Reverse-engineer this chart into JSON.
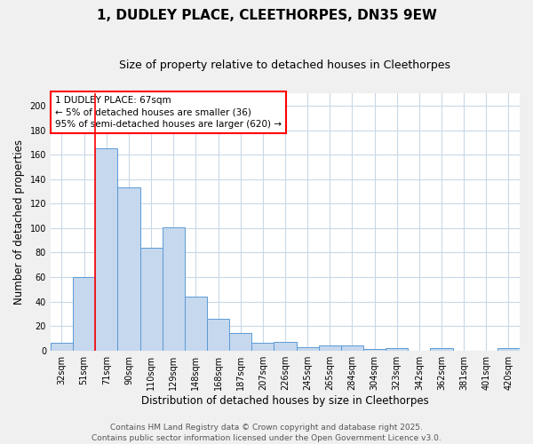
{
  "title": "1, DUDLEY PLACE, CLEETHORPES, DN35 9EW",
  "subtitle": "Size of property relative to detached houses in Cleethorpes",
  "xlabel": "Distribution of detached houses by size in Cleethorpes",
  "ylabel": "Number of detached properties",
  "bar_labels": [
    "32sqm",
    "51sqm",
    "71sqm",
    "90sqm",
    "110sqm",
    "129sqm",
    "148sqm",
    "168sqm",
    "187sqm",
    "207sqm",
    "226sqm",
    "245sqm",
    "265sqm",
    "284sqm",
    "304sqm",
    "323sqm",
    "342sqm",
    "362sqm",
    "381sqm",
    "401sqm",
    "420sqm"
  ],
  "bar_values": [
    6,
    60,
    165,
    133,
    84,
    101,
    44,
    26,
    14,
    6,
    7,
    3,
    4,
    4,
    1,
    2,
    0,
    2,
    0,
    0,
    2
  ],
  "bar_color": "#c5d8ee",
  "bar_edge_color": "#5b9bd5",
  "ylim": [
    0,
    210
  ],
  "yticks": [
    0,
    20,
    40,
    60,
    80,
    100,
    120,
    140,
    160,
    180,
    200
  ],
  "annotation_text": "1 DUDLEY PLACE: 67sqm\n← 5% of detached houses are smaller (36)\n95% of semi-detached houses are larger (620) →",
  "footnote1": "Contains HM Land Registry data © Crown copyright and database right 2025.",
  "footnote2": "Contains public sector information licensed under the Open Government Licence v3.0.",
  "background_color": "#f0f0f0",
  "plot_bg_color": "#ffffff",
  "grid_color": "#c8d8e8",
  "title_fontsize": 11,
  "subtitle_fontsize": 9,
  "label_fontsize": 8.5,
  "tick_fontsize": 7,
  "footnote_fontsize": 6.5,
  "red_line_bar_index": 2
}
